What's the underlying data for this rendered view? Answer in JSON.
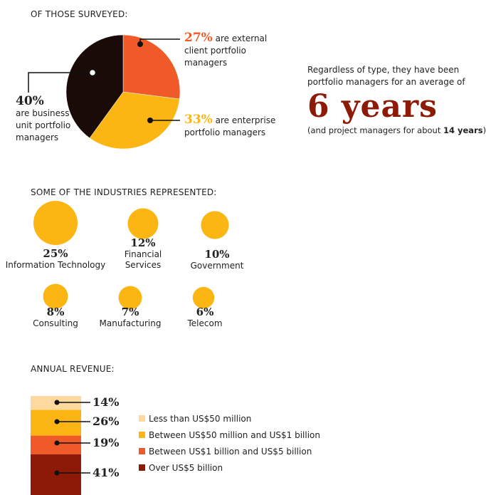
{
  "survey": {
    "title": "OF THOSE SURVEYED:",
    "slices": [
      {
        "pct": "27%",
        "value": 27,
        "text": "are external client portfolio managers",
        "color": "#f05a28"
      },
      {
        "pct": "33%",
        "value": 33,
        "text": "are enterprise portfolio managers",
        "color": "#fbb614"
      },
      {
        "pct": "40%",
        "value": 40,
        "text": "are business unit portfolio managers",
        "color": "#1a0a08"
      }
    ]
  },
  "experience": {
    "line1": "Regardless of type, they have been",
    "line2": "portfolio managers for an average of",
    "big": "6 years",
    "note_pre": "(and project managers for about ",
    "note_bold": "14 years",
    "note_post": ")"
  },
  "industries": {
    "title": "SOME OF THE INDUSTRIES REPRESENTED:",
    "items": [
      {
        "pct": "25%",
        "value": 25,
        "name": "Information Technology"
      },
      {
        "pct": "12%",
        "value": 12,
        "name": "Financial Services"
      },
      {
        "pct": "10%",
        "value": 10,
        "name": "Government"
      },
      {
        "pct": "8%",
        "value": 8,
        "name": "Consulting"
      },
      {
        "pct": "7%",
        "value": 7,
        "name": "Manufacturing"
      },
      {
        "pct": "6%",
        "value": 6,
        "name": "Telecom"
      }
    ],
    "color": "#fbb614"
  },
  "revenue": {
    "title": "ANNUAL REVENUE:",
    "segments": [
      {
        "pct": "14%",
        "value": 14,
        "label": "Less than US$50 million",
        "color": "#fdd9a0"
      },
      {
        "pct": "26%",
        "value": 26,
        "label": "Between US$50 million and US$1 billion",
        "color": "#fbb614"
      },
      {
        "pct": "19%",
        "value": 19,
        "label": "Between US$1 billion and US$5 billion",
        "color": "#f05a28"
      },
      {
        "pct": "41%",
        "value": 41,
        "label": "Over US$5 billion",
        "color": "#8c1a06"
      }
    ]
  },
  "chart_data": [
    {
      "type": "pie",
      "title": "OF THOSE SURVEYED:",
      "categories": [
        "are external client portfolio managers",
        "are enterprise portfolio managers",
        "are business unit portfolio managers"
      ],
      "values": [
        27,
        33,
        40
      ]
    },
    {
      "type": "bubble",
      "title": "SOME OF THE INDUSTRIES REPRESENTED:",
      "categories": [
        "Information Technology",
        "Financial Services",
        "Government",
        "Consulting",
        "Manufacturing",
        "Telecom"
      ],
      "values": [
        25,
        12,
        10,
        8,
        7,
        6
      ]
    },
    {
      "type": "bar",
      "title": "ANNUAL REVENUE:",
      "stacked": true,
      "categories": [
        "Less than US$50 million",
        "Between US$50 million and US$1 billion",
        "Between US$1 billion and US$5 billion",
        "Over US$5 billion"
      ],
      "values": [
        14,
        26,
        19,
        41
      ]
    }
  ]
}
